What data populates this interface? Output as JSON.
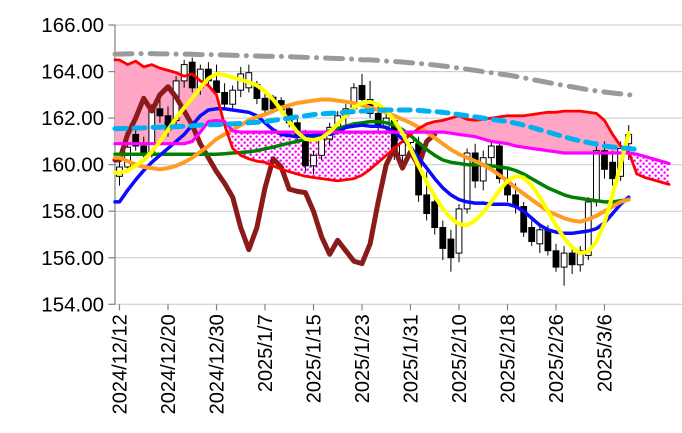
{
  "page": {
    "background": "#ffffff"
  },
  "chart_data": {
    "type": "candlestick",
    "title": "",
    "y_axis": {
      "tick_labels": [
        "166.00",
        "164.00",
        "162.00",
        "160.00",
        "158.00",
        "156.00",
        "154.00"
      ],
      "tick_values": [
        166,
        164,
        162,
        160,
        158,
        156,
        154
      ],
      "ylim": [
        154,
        166
      ],
      "grid": true,
      "grid_color": "#c9c9c9",
      "axis_color": "#808080",
      "label_color": "#000000"
    },
    "x_axis": {
      "tick_labels": [
        "2024/12/12",
        "2024/12/20",
        "2024/12/30",
        "2025/1/7",
        "2025/1/15",
        "2025/1/23",
        "2025/1/31",
        "2025/2/10",
        "2025/2/18",
        "2025/2/26",
        "2025/3/6"
      ],
      "tick_days": [
        0,
        6,
        12,
        18,
        24,
        30,
        36,
        42,
        48,
        54,
        60
      ],
      "label_rotation_deg": -90
    },
    "candles": {
      "up_fill": "#ffffff",
      "down_fill": "#000000",
      "outline": "#000000",
      "ohlc": [
        [
          159.5,
          160.2,
          159.1,
          159.9
        ],
        [
          159.9,
          161.0,
          159.7,
          160.75
        ],
        [
          161.3,
          161.6,
          160.6,
          160.8
        ],
        [
          160.8,
          161.2,
          160.2,
          160.4
        ],
        [
          160.4,
          162.6,
          160.3,
          162.4
        ],
        [
          162.4,
          162.8,
          161.8,
          162.1
        ],
        [
          162.1,
          162.5,
          161.2,
          161.5
        ],
        [
          161.9,
          163.8,
          161.7,
          163.6
        ],
        [
          163.6,
          164.5,
          163.3,
          164.3
        ],
        [
          164.4,
          164.6,
          163.1,
          163.3
        ],
        [
          163.3,
          164.3,
          163.0,
          164.1
        ],
        [
          164.1,
          164.4,
          163.4,
          163.6
        ],
        [
          163.6,
          164.3,
          162.9,
          163.1
        ],
        [
          163.1,
          163.5,
          162.4,
          162.6
        ],
        [
          162.6,
          163.4,
          162.4,
          163.2
        ],
        [
          163.2,
          164.2,
          162.9,
          163.9
        ],
        [
          163.3,
          164.3,
          163.1,
          163.95
        ],
        [
          163.45,
          163.6,
          162.6,
          162.85
        ],
        [
          162.85,
          163.1,
          162.1,
          162.35
        ],
        [
          162.9,
          163.0,
          162.2,
          162.4
        ],
        [
          162.75,
          162.9,
          162.2,
          162.35
        ],
        [
          162.4,
          162.6,
          161.6,
          161.8
        ],
        [
          161.8,
          162.0,
          161.0,
          161.3
        ],
        [
          161.3,
          161.5,
          159.7,
          159.95
        ],
        [
          159.95,
          160.6,
          159.6,
          160.4
        ],
        [
          160.4,
          161.3,
          160.2,
          161.1
        ],
        [
          161.1,
          161.8,
          160.8,
          161.6
        ],
        [
          161.6,
          162.3,
          161.3,
          162.1
        ],
        [
          162.1,
          162.6,
          161.7,
          162.4
        ],
        [
          162.4,
          163.5,
          162.2,
          163.3
        ],
        [
          163.4,
          163.9,
          162.6,
          162.8
        ],
        [
          162.8,
          163.6,
          162.0,
          162.2
        ],
        [
          162.2,
          162.5,
          161.4,
          161.6
        ],
        [
          161.6,
          162.2,
          161.3,
          162.0
        ],
        [
          161.9,
          162.1,
          160.2,
          160.4
        ],
        [
          160.4,
          161.2,
          160.1,
          160.95
        ],
        [
          160.95,
          161.4,
          160.5,
          161.2
        ],
        [
          160.9,
          161.2,
          158.4,
          158.7
        ],
        [
          158.7,
          159.7,
          157.6,
          157.9
        ],
        [
          158.4,
          158.8,
          157.0,
          157.3
        ],
        [
          157.3,
          157.6,
          155.9,
          156.4
        ],
        [
          156.8,
          157.2,
          155.4,
          156.0
        ],
        [
          156.2,
          158.3,
          155.8,
          158.1
        ],
        [
          158.1,
          160.7,
          157.9,
          160.5
        ],
        [
          160.5,
          160.9,
          159.0,
          159.3
        ],
        [
          159.3,
          160.6,
          158.9,
          160.3
        ],
        [
          160.3,
          161.0,
          159.7,
          160.8
        ],
        [
          160.8,
          160.9,
          159.2,
          159.4
        ],
        [
          159.4,
          159.8,
          158.4,
          158.7
        ],
        [
          158.7,
          159.2,
          157.9,
          158.2
        ],
        [
          158.2,
          158.4,
          156.9,
          157.1
        ],
        [
          157.3,
          157.8,
          156.5,
          156.7
        ],
        [
          156.6,
          157.5,
          156.2,
          157.2
        ],
        [
          157.2,
          157.4,
          156.1,
          156.3
        ],
        [
          156.3,
          156.6,
          155.4,
          155.6
        ],
        [
          155.6,
          156.5,
          154.8,
          156.2
        ],
        [
          156.2,
          156.4,
          155.3,
          155.7
        ],
        [
          155.7,
          156.5,
          155.4,
          156.3
        ],
        [
          156.1,
          158.6,
          155.9,
          158.4
        ],
        [
          158.4,
          161.0,
          158.2,
          160.6
        ],
        [
          160.6,
          161.0,
          159.4,
          159.8
        ],
        [
          160.1,
          160.6,
          159.1,
          159.4
        ],
        [
          159.5,
          161.0,
          159.3,
          160.7
        ],
        [
          160.9,
          161.7,
          160.2,
          161.3
        ]
      ]
    },
    "cloud": {
      "bull_fill": "#ffa6c6",
      "bear_fill": "dot-pattern",
      "dot_color": "#ff00ff",
      "span_a": "red-span-a-line",
      "span_b": "magenta-span-b-line"
    },
    "overlays": [
      {
        "name": "gray-dashdot-band",
        "color": "#9a9a9a",
        "style": "dashdot",
        "width": 5,
        "behind_candles": true,
        "start_day": 0,
        "values": [
          164.75,
          164.76,
          164.77,
          164.77,
          164.77,
          164.76,
          164.76,
          164.75,
          164.75,
          164.74,
          164.73,
          164.73,
          164.72,
          164.71,
          164.7,
          164.69,
          164.68,
          164.67,
          164.66,
          164.65,
          164.65,
          164.64,
          164.62,
          164.61,
          164.6,
          164.59,
          164.57,
          164.56,
          164.55,
          164.53,
          164.51,
          164.5,
          164.48,
          164.45,
          164.43,
          164.41,
          164.38,
          164.35,
          164.31,
          164.28,
          164.24,
          164.2,
          164.15,
          164.1,
          164.05,
          164.0,
          163.95,
          163.9,
          163.85,
          163.79,
          163.73,
          163.66,
          163.6,
          163.53,
          163.46,
          163.4,
          163.34,
          163.28,
          163.22,
          163.17,
          163.12,
          163.08,
          163.04,
          163.0,
          162.97
        ]
      },
      {
        "name": "maroon-chikou-line",
        "color": "#8b1a1a",
        "style": "solid",
        "width": 5,
        "start_day": 0,
        "values": [
          160.2,
          161.3,
          162.0,
          162.85,
          162.3,
          163.0,
          163.35,
          162.9,
          162.3,
          161.7,
          160.9,
          160.3,
          159.7,
          159.2,
          158.6,
          157.3,
          156.35,
          157.3,
          159.0,
          160.25,
          159.9,
          158.95,
          158.85,
          158.8,
          158.0,
          156.9,
          156.15,
          156.75,
          156.3,
          155.85,
          155.75,
          156.6,
          158.4,
          160.0,
          160.7,
          159.85,
          160.55,
          159.95,
          161.0,
          161.3
        ]
      },
      {
        "name": "green-slow-ma-line",
        "color": "#008000",
        "style": "solid",
        "width": 3.5,
        "start_day": 0,
        "values": [
          160.45,
          160.45,
          160.45,
          160.45,
          160.45,
          160.45,
          160.45,
          160.45,
          160.45,
          160.45,
          160.45,
          160.45,
          160.45,
          160.47,
          160.5,
          160.52,
          160.55,
          160.6,
          160.68,
          160.75,
          160.85,
          160.92,
          161.0,
          161.1,
          161.2,
          161.3,
          161.45,
          161.55,
          161.65,
          161.75,
          161.8,
          161.85,
          161.85,
          161.8,
          161.7,
          161.5,
          161.25,
          160.95,
          160.65,
          160.4,
          160.2,
          160.1,
          160.05,
          160.0,
          160.0,
          160.0,
          159.95,
          159.9,
          159.85,
          159.75,
          159.6,
          159.4,
          159.2,
          159.0,
          158.85,
          158.7,
          158.6,
          158.55,
          158.5,
          158.45,
          158.4,
          158.4,
          158.45,
          158.5
        ]
      },
      {
        "name": "blue-ma-line",
        "color": "#0a0aff",
        "style": "solid",
        "width": 3.5,
        "start_day": 0,
        "values": [
          158.4,
          158.9,
          159.35,
          159.75,
          160.1,
          160.4,
          160.7,
          161.0,
          161.3,
          161.7,
          162.1,
          162.35,
          162.4,
          162.4,
          162.35,
          162.3,
          162.25,
          162.1,
          161.8,
          161.5,
          161.3,
          161.25,
          161.2,
          161.25,
          161.25,
          161.3,
          161.3,
          161.4,
          161.6,
          161.65,
          161.7,
          161.65,
          161.65,
          161.6,
          161.4,
          161.1,
          160.75,
          160.3,
          159.85,
          159.4,
          159.0,
          158.7,
          158.5,
          158.4,
          158.35,
          158.35,
          158.3,
          158.3,
          158.3,
          158.2,
          158.0,
          157.7,
          157.4,
          157.2,
          157.1,
          157.05,
          157.05,
          157.1,
          157.15,
          157.25,
          157.5,
          157.9,
          158.3,
          158.6
        ]
      },
      {
        "name": "orange-ma-line",
        "color": "#ff9d23",
        "style": "solid",
        "width": 4,
        "start_day": 0,
        "values": [
          160.3,
          160.15,
          160.0,
          159.9,
          159.85,
          159.8,
          159.85,
          159.95,
          160.1,
          160.3,
          160.55,
          160.8,
          161.1,
          161.3,
          161.5,
          161.7,
          161.9,
          162.05,
          162.15,
          162.3,
          162.45,
          162.55,
          162.65,
          162.7,
          162.75,
          162.8,
          162.8,
          162.75,
          162.7,
          162.65,
          162.55,
          162.45,
          162.35,
          162.25,
          162.1,
          161.95,
          161.8,
          161.6,
          161.4,
          161.15,
          160.9,
          160.65,
          160.45,
          160.3,
          160.15,
          160.0,
          159.8,
          159.55,
          159.3,
          159.0,
          158.75,
          158.5,
          158.25,
          158.0,
          157.85,
          157.7,
          157.6,
          157.55,
          157.65,
          157.8,
          158.0,
          158.2,
          158.4,
          158.5
        ]
      },
      {
        "name": "red-span-a-line",
        "color": "#ff0000",
        "style": "solid",
        "width": 2.8,
        "start_day": 0,
        "values": [
          164.5,
          164.3,
          164.45,
          164.2,
          164.3,
          164.15,
          164.05,
          163.95,
          163.8,
          163.9,
          163.6,
          163.4,
          163.0,
          161.7,
          160.7,
          160.4,
          160.25,
          160.15,
          160.1,
          159.95,
          159.8,
          159.7,
          159.6,
          159.5,
          159.45,
          159.4,
          159.35,
          159.3,
          159.35,
          159.4,
          159.55,
          159.8,
          160.1,
          160.4,
          160.7,
          161.0,
          161.3,
          161.55,
          161.75,
          161.85,
          161.9,
          162.0,
          162.1,
          161.95,
          161.9,
          161.95,
          162.0,
          162.05,
          162.1,
          162.1,
          162.1,
          162.15,
          162.2,
          162.25,
          162.25,
          162.3,
          162.3,
          162.3,
          162.25,
          162.2,
          161.9,
          161.3,
          160.8,
          160.55,
          159.6,
          159.45,
          159.35,
          159.25,
          159.15
        ]
      },
      {
        "name": "magenta-span-b-line",
        "color": "#ff00ff",
        "style": "solid",
        "width": 3.2,
        "start_day": 0,
        "values": [
          160.9,
          160.9,
          160.9,
          160.9,
          160.9,
          160.9,
          160.9,
          160.9,
          160.9,
          161.0,
          161.4,
          161.85,
          161.9,
          161.85,
          161.45,
          161.4,
          161.4,
          161.4,
          161.4,
          161.4,
          161.4,
          161.4,
          161.4,
          161.4,
          161.4,
          161.4,
          161.4,
          161.4,
          161.4,
          161.4,
          161.4,
          161.4,
          161.4,
          161.4,
          161.4,
          161.4,
          161.4,
          161.4,
          161.4,
          161.4,
          161.4,
          161.35,
          161.3,
          161.25,
          161.2,
          161.1,
          161.0,
          160.95,
          160.9,
          160.8,
          160.75,
          160.7,
          160.65,
          160.6,
          160.55,
          160.5,
          160.5,
          160.5,
          160.5,
          160.5,
          160.5,
          160.5,
          160.5,
          160.5,
          160.45,
          160.35,
          160.25,
          160.15,
          160.05
        ]
      },
      {
        "name": "yellow-fast-ma-line",
        "color": "#ffff00",
        "style": "solid",
        "width": 4,
        "start_day": 0,
        "values": [
          159.65,
          159.75,
          159.95,
          160.2,
          160.55,
          161.0,
          161.5,
          162.0,
          162.45,
          162.85,
          163.3,
          163.7,
          163.9,
          163.85,
          163.75,
          163.65,
          163.55,
          163.4,
          163.15,
          162.8,
          162.35,
          161.85,
          161.4,
          161.1,
          161.05,
          161.15,
          161.4,
          161.75,
          162.1,
          162.45,
          162.65,
          162.7,
          162.6,
          162.35,
          161.9,
          161.35,
          160.7,
          159.95,
          159.25,
          158.65,
          158.1,
          157.7,
          157.45,
          157.4,
          157.6,
          157.95,
          158.4,
          158.9,
          159.3,
          159.5,
          159.45,
          159.1,
          158.6,
          158.0,
          157.4,
          156.85,
          156.45,
          156.2,
          156.25,
          156.7,
          157.5,
          158.7,
          160.0,
          161.35
        ]
      },
      {
        "name": "cyan-dashed-mid-line",
        "color": "#00b0f0",
        "style": "dash",
        "width": 5,
        "start_day": 0,
        "values": [
          161.55,
          161.56,
          161.57,
          161.58,
          161.6,
          161.61,
          161.62,
          161.63,
          161.65,
          161.67,
          161.7,
          161.71,
          161.72,
          161.74,
          161.75,
          161.77,
          161.8,
          161.82,
          161.85,
          161.9,
          161.95,
          162.0,
          162.05,
          162.1,
          162.15,
          162.18,
          162.2,
          162.22,
          162.25,
          162.28,
          162.3,
          162.32,
          162.35,
          162.35,
          162.35,
          162.35,
          162.35,
          162.33,
          162.3,
          162.28,
          162.25,
          162.2,
          162.15,
          162.1,
          162.05,
          162.0,
          161.95,
          161.9,
          161.85,
          161.78,
          161.7,
          161.6,
          161.5,
          161.4,
          161.3,
          161.2,
          161.1,
          161.02,
          160.95,
          160.88,
          160.8,
          160.76,
          160.72,
          160.7,
          160.65
        ]
      }
    ]
  }
}
